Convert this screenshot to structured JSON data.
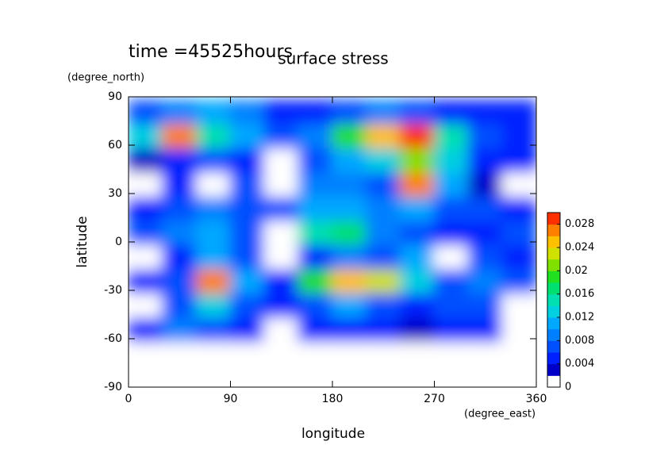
{
  "chart_data": {
    "type": "contour",
    "title": "surface stress",
    "subtitle": "time =45525hours",
    "x_label": "longitude",
    "y_label": "latitude",
    "x_unit": "(degree_east)",
    "y_unit": "(degree_north)",
    "xlim": [
      0,
      360
    ],
    "ylim": [
      -90,
      90
    ],
    "xticks": [
      0,
      90,
      180,
      270,
      360
    ],
    "yticks": [
      -90,
      -60,
      -30,
      0,
      30,
      60,
      90
    ],
    "clim": [
      0,
      0.03
    ],
    "cticks": [
      0,
      0.004,
      0.008,
      0.012,
      0.016,
      0.02,
      0.024,
      0.028
    ],
    "colormap": [
      "#ffffff",
      "#0000c8",
      "#0020ff",
      "#0050ff",
      "#0080ff",
      "#00a8ff",
      "#00d0e0",
      "#00e0b0",
      "#00e070",
      "#20e020",
      "#80e000",
      "#d0e000",
      "#ffc000",
      "#ff8000",
      "#ff3000"
    ],
    "x": [
      15,
      45,
      75,
      105,
      135,
      165,
      195,
      225,
      255,
      285,
      315,
      345
    ],
    "y": [
      80,
      65,
      50,
      35,
      20,
      5,
      -10,
      -25,
      -40,
      -55,
      -70,
      -85
    ],
    "z": [
      [
        0.006,
        0.008,
        0.01,
        0.008,
        0.005,
        0.004,
        0.006,
        0.008,
        0.006,
        0.004,
        0.004,
        0.004
      ],
      [
        0.012,
        0.026,
        0.014,
        0.01,
        0.006,
        0.008,
        0.018,
        0.024,
        0.028,
        0.014,
        0.006,
        0.005
      ],
      [
        0.002,
        0.004,
        0.006,
        0.004,
        0,
        0.006,
        0.01,
        0.012,
        0.02,
        0.012,
        0.004,
        0.004
      ],
      [
        0,
        0.004,
        0,
        0.006,
        0,
        0.008,
        0.008,
        0.006,
        0.026,
        0.01,
        0.002,
        0
      ],
      [
        0.004,
        0.006,
        0.008,
        0.006,
        0.006,
        0.01,
        0.01,
        0.008,
        0.01,
        0.006,
        0.006,
        0.004
      ],
      [
        0.006,
        0.008,
        0.01,
        0.006,
        0,
        0.014,
        0.016,
        0.008,
        0.006,
        0.004,
        0.004,
        0.006
      ],
      [
        0,
        0.004,
        0.01,
        0.006,
        0,
        0.004,
        0.008,
        0.006,
        0.01,
        0,
        0.006,
        0.004
      ],
      [
        0.004,
        0.006,
        0.026,
        0.01,
        0.004,
        0.018,
        0.024,
        0.022,
        0.012,
        0.006,
        0.008,
        0.006
      ],
      [
        0,
        0.006,
        0.012,
        0.006,
        0.004,
        0.006,
        0.01,
        0.006,
        0.004,
        0.006,
        0.006,
        0
      ],
      [
        0.004,
        0.008,
        0.006,
        0.004,
        0,
        0.004,
        0.004,
        0.004,
        0.002,
        0.004,
        0.004,
        0
      ],
      [
        0,
        0,
        0,
        0,
        0,
        0,
        0,
        0,
        0,
        0,
        0,
        0
      ],
      [
        0,
        0,
        0,
        0,
        0,
        0,
        0,
        0,
        0,
        0,
        0,
        0
      ]
    ]
  }
}
